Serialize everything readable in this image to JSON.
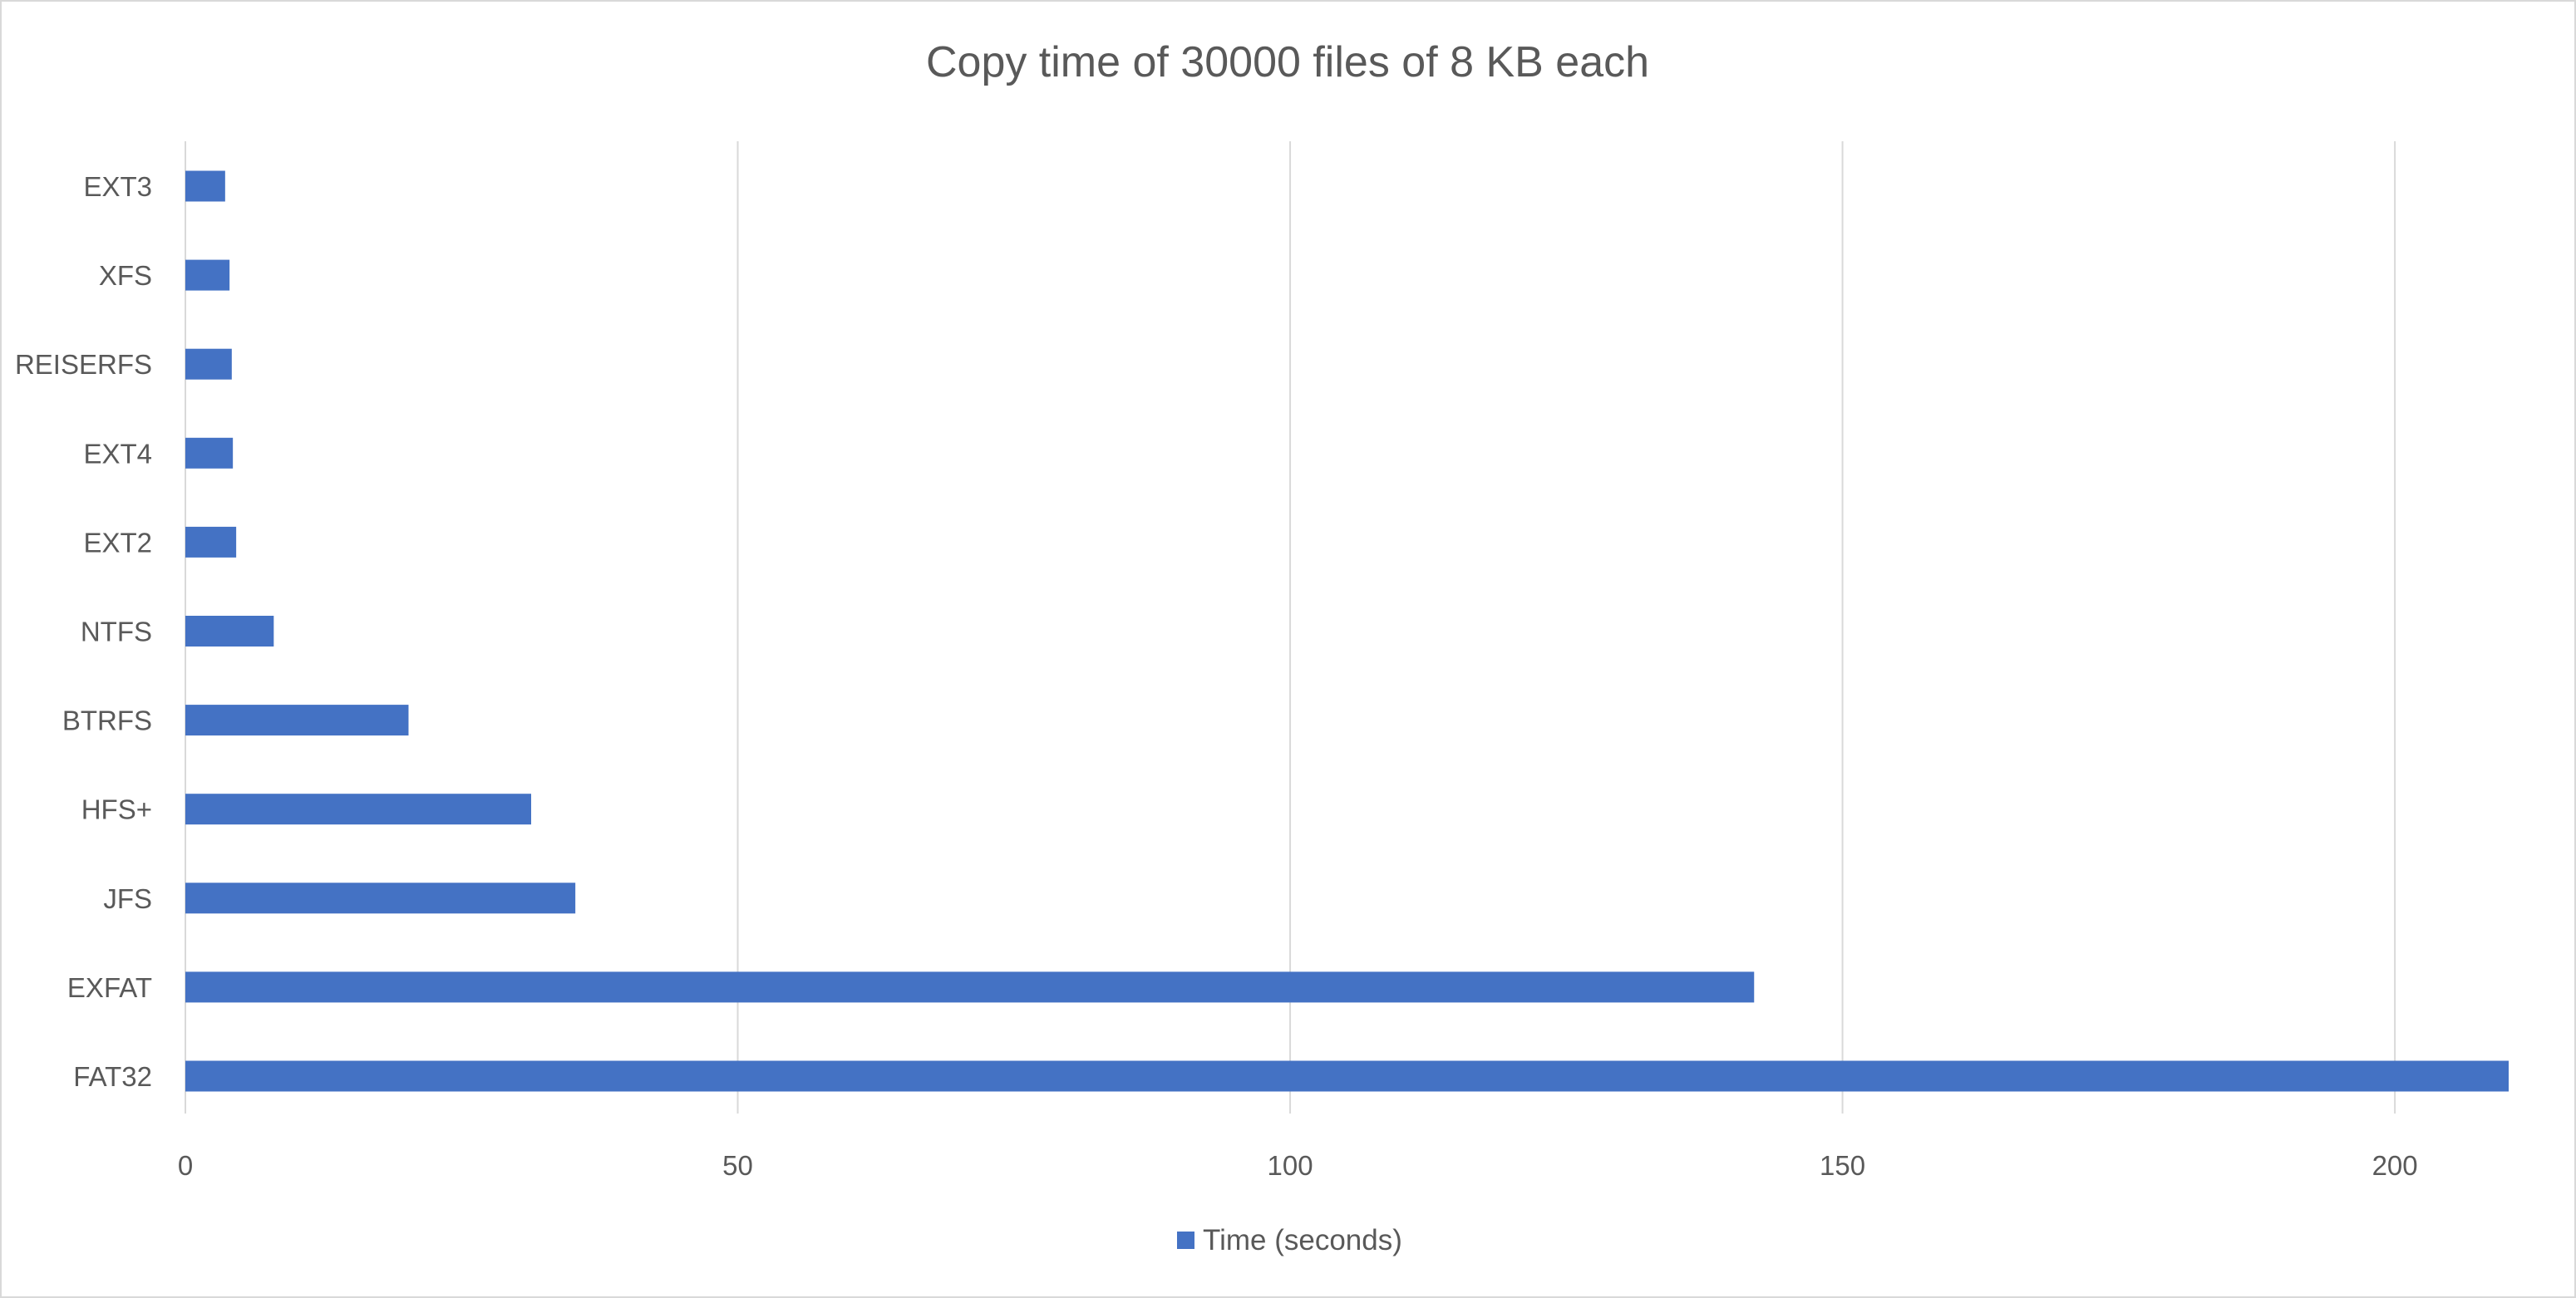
{
  "chart_data": {
    "type": "bar",
    "orientation": "horizontal",
    "title": "Copy time of 30000 files of 8 KB each",
    "categories": [
      "EXT3",
      "XFS",
      "REISERFS",
      "EXT4",
      "EXT2",
      "NTFS",
      "BTRFS",
      "HFS+",
      "JFS",
      "EXFAT",
      "FAT32"
    ],
    "series": [
      {
        "name": "Time (seconds)",
        "color": "#4472c4",
        "values": [
          3.6,
          4.0,
          4.2,
          4.3,
          4.6,
          8.0,
          20.2,
          31.3,
          35.3,
          142.0,
          210.3
        ]
      }
    ],
    "xlim": [
      0,
      210.3
    ],
    "xticks": [
      "0",
      "50",
      "100",
      "150",
      "200"
    ],
    "xtick_values": [
      0,
      50,
      100,
      150,
      200
    ],
    "xlabel": "",
    "ylabel": "",
    "grid": "vertical",
    "legend": "bottom"
  }
}
